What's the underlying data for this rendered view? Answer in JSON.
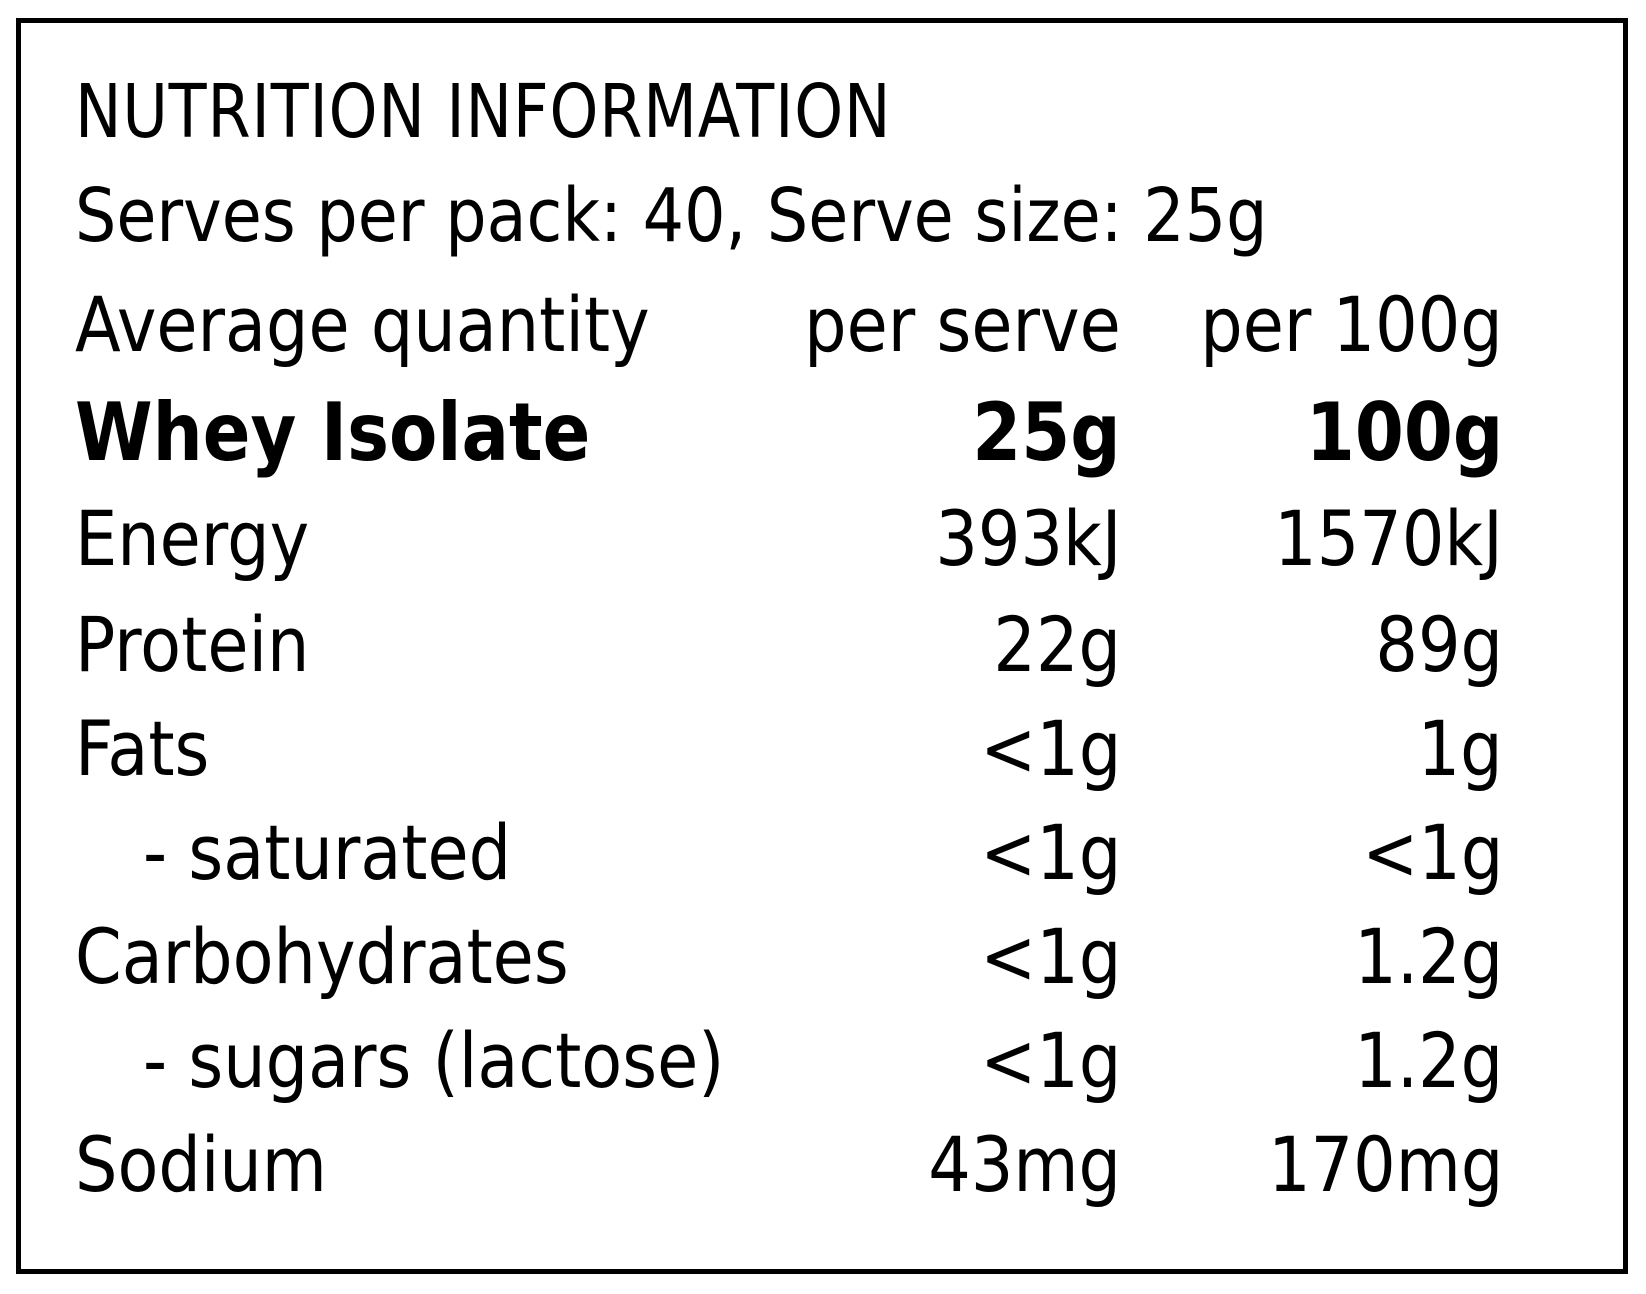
{
  "panel": {
    "title": "NUTRITION INFORMATION",
    "serves_line": "Serves per pack: 40, Serve size: 25g"
  },
  "table": {
    "header": {
      "label": "Average quantity",
      "per_serve": "per serve",
      "per_100g": "per 100g"
    },
    "rows": [
      {
        "label": "Whey Isolate",
        "per_serve": "25g",
        "per_100g": "100g"
      },
      {
        "label": "Energy",
        "per_serve": "393kJ",
        "per_100g": "1570kJ"
      },
      {
        "label": "Protein",
        "per_serve": "22g",
        "per_100g": "89g"
      },
      {
        "label": "Fats",
        "per_serve": "<1g",
        "per_100g": "1g"
      },
      {
        "label": "- saturated",
        "per_serve": "<1g",
        "per_100g": "<1g"
      },
      {
        "label": "Carbohydrates",
        "per_serve": "<1g",
        "per_100g": "1.2g"
      },
      {
        "label": "- sugars (lactose)",
        "per_serve": "<1g",
        "per_100g": "1.2g"
      },
      {
        "label": "Sodium",
        "per_serve": "43mg",
        "per_100g": "170mg"
      }
    ]
  }
}
